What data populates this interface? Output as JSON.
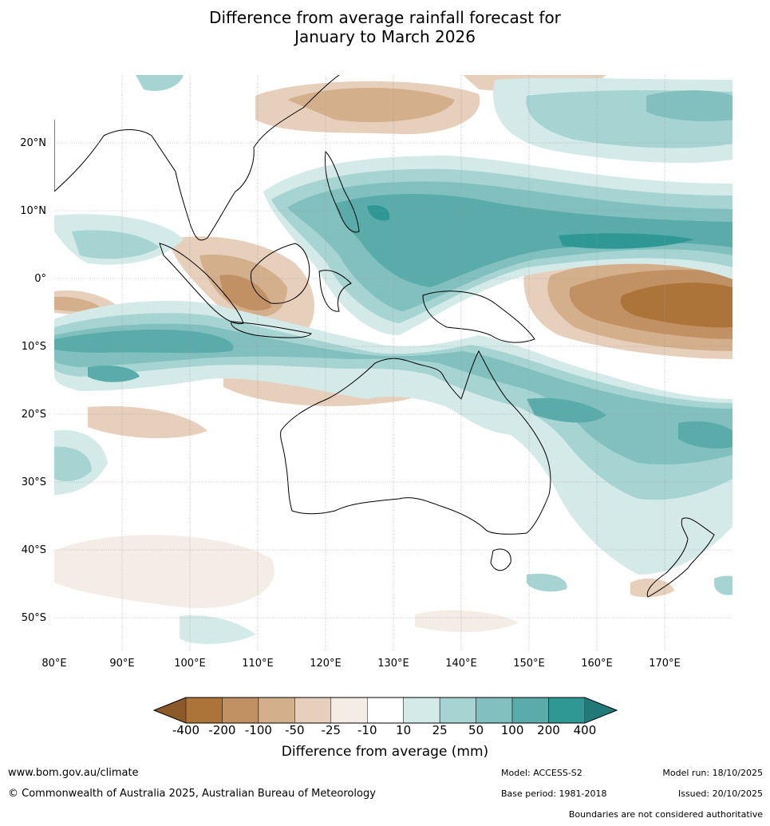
{
  "title": {
    "line1": "Difference from average rainfall forecast for",
    "line2": "January to March 2026"
  },
  "map": {
    "lat_labels": [
      "20°N",
      "10°N",
      "0°",
      "10°S",
      "20°S",
      "30°S",
      "40°S",
      "50°S"
    ],
    "lon_labels": [
      "80°E",
      "90°E",
      "100°E",
      "110°E",
      "120°E",
      "130°E",
      "140°E",
      "150°E",
      "160°E",
      "170°E"
    ],
    "extent": {
      "lon_min": 80,
      "lon_max": 180,
      "lat_min": -55,
      "lat_max": 30
    }
  },
  "legend": {
    "title": "Difference from average (mm)",
    "tick_labels": [
      "-400",
      "-200",
      "-100",
      "-50",
      "-25",
      "-10",
      "10",
      "25",
      "50",
      "100",
      "200",
      "400"
    ],
    "colors": [
      "#8c5a28",
      "#ad743a",
      "#c29163",
      "#d4af8c",
      "#e6d0bc",
      "#f4ede6",
      "#ffffff",
      "#d3eae8",
      "#a6d4d2",
      "#81c0be",
      "#5aacaa",
      "#2f9895",
      "#217a77"
    ]
  },
  "footer": {
    "website": "www.bom.gov.au/climate",
    "copyright": "© Commonwealth of Australia 2025, Australian Bureau of Meteorology",
    "model": "Model: ACCESS-S2",
    "base_period": "Base period: 1981-2018",
    "model_run": "Model run: 18/10/2025",
    "issued": "Issued: 20/10/2025",
    "disclaimer": "Boundaries are not considered authoritative"
  }
}
